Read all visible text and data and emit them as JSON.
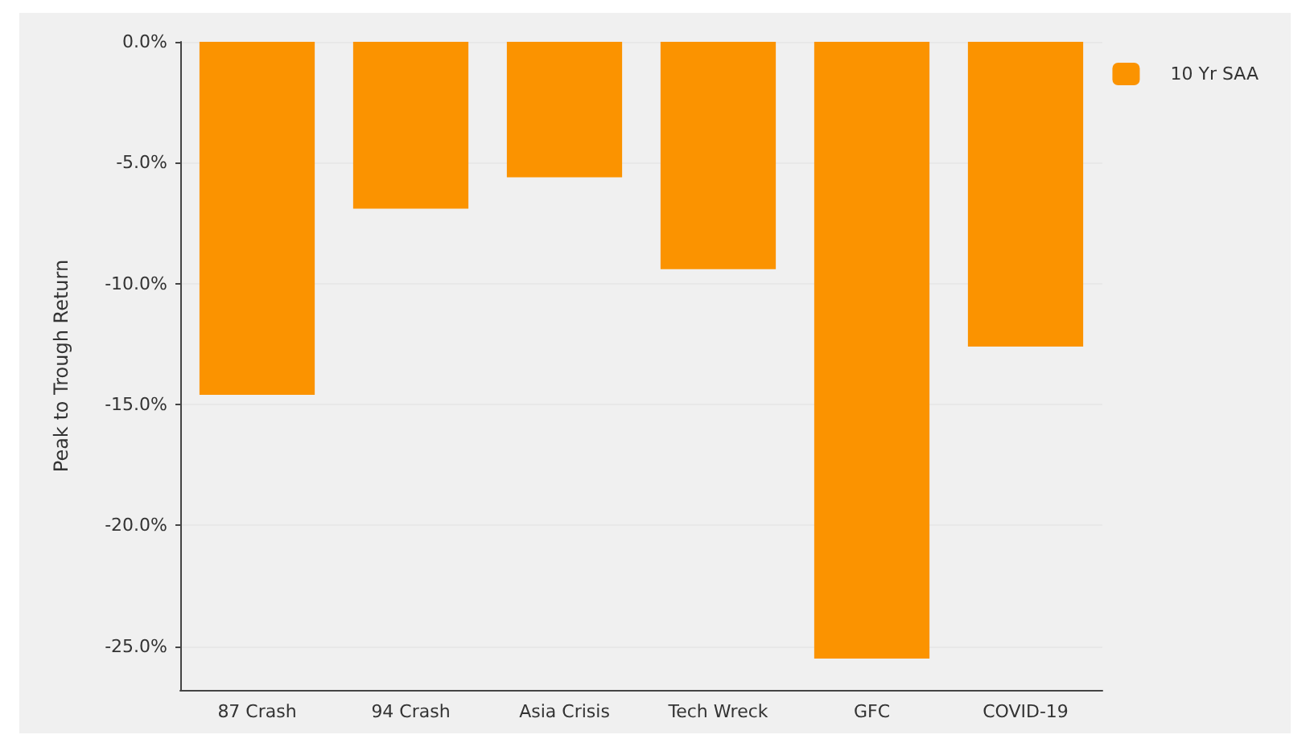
{
  "chart_data": {
    "type": "bar",
    "ylabel": "Peak to Trough Return",
    "categories": [
      "87 Crash",
      "94 Crash",
      "Asia Crisis",
      "Tech Wreck",
      "GFC",
      "COVID-19"
    ],
    "series": [
      {
        "name": "10 Yr SAA",
        "color": "#fb9300",
        "values": [
          -14.6,
          -6.9,
          -5.6,
          -9.4,
          -25.5,
          -12.6
        ]
      }
    ],
    "ylim": [
      -26.8,
      0
    ],
    "yticks": [
      {
        "value": -25,
        "label": "-25.0%"
      },
      {
        "value": -20,
        "label": "-20.0%"
      },
      {
        "value": -15,
        "label": "-15.0%"
      },
      {
        "value": -10,
        "label": "-10.0%"
      },
      {
        "value": -5,
        "label": "-5.0%"
      },
      {
        "value": 0,
        "label": "0.0%"
      }
    ],
    "grid": "y",
    "legend": "top right"
  }
}
